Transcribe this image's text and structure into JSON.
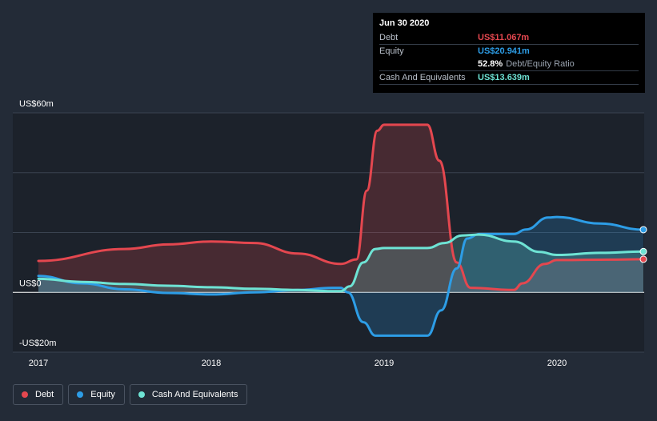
{
  "tooltip": {
    "date": "Jun 30 2020",
    "debt_label": "Debt",
    "debt_value": "US$11.067m",
    "equity_label": "Equity",
    "equity_value": "US$20.941m",
    "ratio_value": "52.8%",
    "ratio_label": "Debt/Equity Ratio",
    "cash_label": "Cash And Equivalents",
    "cash_value": "US$13.639m"
  },
  "legend": {
    "debt": "Debt",
    "equity": "Equity",
    "cash": "Cash And Equivalents"
  },
  "colors": {
    "debt": "#e4474f",
    "equity": "#2d9de6",
    "cash": "#6ee3d4",
    "background": "#232b37",
    "plot_background": "#1c222b"
  },
  "chart_data": {
    "type": "area",
    "title": "",
    "xlabel": "",
    "ylabel": "",
    "ylim": [
      -20,
      60
    ],
    "xlim": [
      2017.0,
      2020.5
    ],
    "y_ticks": [
      {
        "value": 60,
        "label": "US$60m"
      },
      {
        "value": 0,
        "label": "US$0"
      },
      {
        "value": -20,
        "label": "-US$20m"
      }
    ],
    "x_ticks": [
      {
        "value": 2017,
        "label": "2017"
      },
      {
        "value": 2018,
        "label": "2018"
      },
      {
        "value": 2019,
        "label": "2019"
      },
      {
        "value": 2020,
        "label": "2020"
      }
    ],
    "series": [
      {
        "name": "Debt",
        "key": "debt",
        "points": [
          [
            2017.0,
            10.5
          ],
          [
            2017.5,
            14.5
          ],
          [
            2017.75,
            16.0
          ],
          [
            2018.0,
            17.0
          ],
          [
            2018.25,
            16.5
          ],
          [
            2018.5,
            13.0
          ],
          [
            2018.75,
            9.5
          ],
          [
            2018.84,
            11.0
          ],
          [
            2018.9,
            34.0
          ],
          [
            2018.96,
            54.0
          ],
          [
            2019.0,
            56.0
          ],
          [
            2019.25,
            56.0
          ],
          [
            2019.32,
            44.0
          ],
          [
            2019.42,
            10.0
          ],
          [
            2019.5,
            1.5
          ],
          [
            2019.75,
            0.8
          ],
          [
            2019.8,
            3.0
          ],
          [
            2019.93,
            9.5
          ],
          [
            2020.0,
            10.8
          ],
          [
            2020.25,
            10.9
          ],
          [
            2020.5,
            11.067
          ]
        ]
      },
      {
        "name": "Equity",
        "key": "equity",
        "points": [
          [
            2017.0,
            5.5
          ],
          [
            2017.25,
            3.0
          ],
          [
            2017.5,
            1.0
          ],
          [
            2017.75,
            -0.2
          ],
          [
            2018.0,
            -0.7
          ],
          [
            2018.25,
            0.0
          ],
          [
            2018.5,
            0.8
          ],
          [
            2018.7,
            1.5
          ],
          [
            2018.75,
            1.5
          ],
          [
            2018.79,
            0.0
          ],
          [
            2018.88,
            -10.0
          ],
          [
            2018.95,
            -14.5
          ],
          [
            2019.0,
            -14.5
          ],
          [
            2019.25,
            -14.5
          ],
          [
            2019.33,
            -6.0
          ],
          [
            2019.42,
            8.0
          ],
          [
            2019.48,
            18.0
          ],
          [
            2019.55,
            19.5
          ],
          [
            2019.75,
            19.5
          ],
          [
            2019.82,
            21.0
          ],
          [
            2019.95,
            25.0
          ],
          [
            2020.0,
            25.2
          ],
          [
            2020.25,
            23.0
          ],
          [
            2020.5,
            20.941
          ]
        ]
      },
      {
        "name": "Cash And Equivalents",
        "key": "cash",
        "points": [
          [
            2017.0,
            4.5
          ],
          [
            2017.25,
            3.5
          ],
          [
            2017.5,
            2.8
          ],
          [
            2017.75,
            2.2
          ],
          [
            2018.0,
            1.7
          ],
          [
            2018.25,
            1.2
          ],
          [
            2018.5,
            0.8
          ],
          [
            2018.7,
            0.4
          ],
          [
            2018.75,
            0.4
          ],
          [
            2018.8,
            2.0
          ],
          [
            2018.88,
            10.0
          ],
          [
            2018.95,
            14.5
          ],
          [
            2019.0,
            14.8
          ],
          [
            2019.25,
            14.8
          ],
          [
            2019.35,
            16.5
          ],
          [
            2019.45,
            19.0
          ],
          [
            2019.55,
            19.3
          ],
          [
            2019.75,
            17.0
          ],
          [
            2019.9,
            13.5
          ],
          [
            2020.0,
            12.5
          ],
          [
            2020.25,
            13.2
          ],
          [
            2020.5,
            13.639
          ]
        ]
      }
    ],
    "highlight_x": 2020.5
  }
}
